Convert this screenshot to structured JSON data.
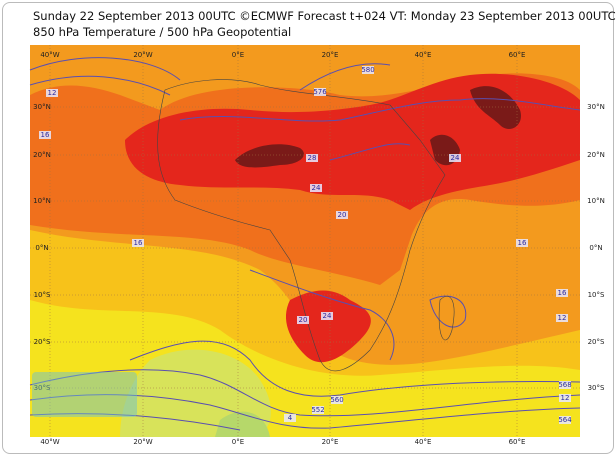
{
  "header": {
    "title": "Sunday 22 September 2013 00UTC ©ECMWF Forecast t+024 VT: Monday 23 September 2013 00UTC",
    "subtitle": "850 hPa Temperature / 500 hPa Geopotential"
  },
  "map": {
    "longitudes": [
      "40°W",
      "20°W",
      "0°E",
      "20°E",
      "40°E",
      "60°E"
    ],
    "latitudes": [
      "30°N",
      "20°N",
      "10°N",
      "0°N",
      "10°S",
      "20°S",
      "30°S"
    ],
    "contour_labels": [
      "12",
      "16",
      "576",
      "580",
      "28",
      "24",
      "20",
      "16",
      "24",
      "16",
      "16",
      "12",
      "20",
      "24",
      "568",
      "560",
      "552",
      "12",
      "564",
      "4"
    ]
  }
}
